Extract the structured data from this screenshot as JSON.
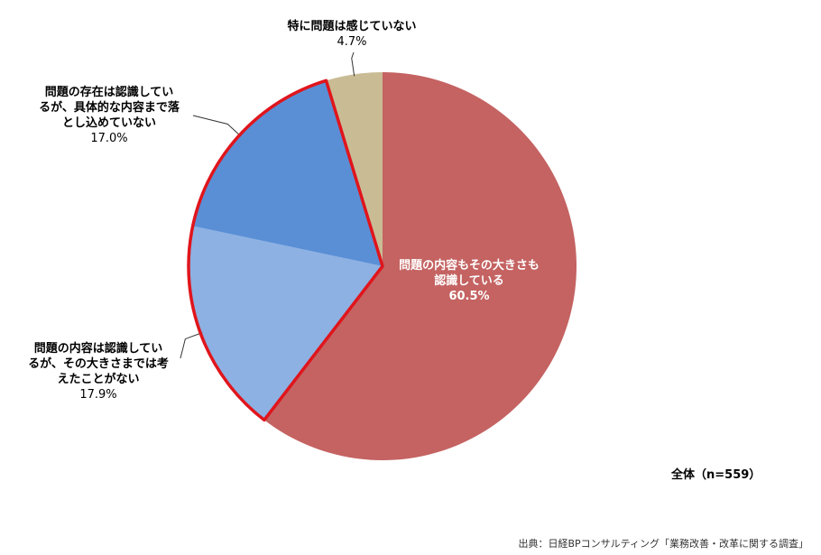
{
  "chart_data": {
    "type": "pie",
    "title": "",
    "slices": [
      {
        "label_lines": [
          "問題の内容もその大きさも",
          "認識している"
        ],
        "value": 60.5,
        "pct": "60.5%",
        "color": "#C46362"
      },
      {
        "label_lines": [
          "問題の内容は認識してい",
          "るが、その大きさまでは考",
          "えたことがない"
        ],
        "value": 17.9,
        "pct": "17.9%",
        "color": "#8DB1E2"
      },
      {
        "label_lines": [
          "問題の存在は認識してい",
          "るが、具体的な内容まで落",
          "とし込めていない"
        ],
        "value": 17.0,
        "pct": "17.0%",
        "color": "#5A8FD6"
      },
      {
        "label_lines": [
          "特に問題は感じていない"
        ],
        "value": 4.7,
        "pct": "4.7%",
        "color": "#C9BC95"
      }
    ],
    "highlight": {
      "slices": [
        1,
        2
      ],
      "color": "#E0151C"
    },
    "total_label": "全体（n=559）",
    "source": "出典：日経BPコンサルティング「業務改善・改革に関する調査」"
  }
}
